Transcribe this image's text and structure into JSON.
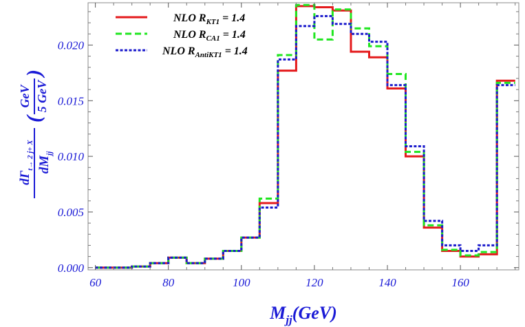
{
  "chart_data": {
    "type": "line",
    "step": true,
    "xlabel": "M",
    "xlabel_sub": "jj",
    "xlabel_unit": "(GeV)",
    "ylabel": {
      "numerator": "dΓ",
      "numerator_sub": "t→ 2 j+ X",
      "denominator": "dM",
      "denominator_sub": "jj",
      "unit_numerator": "GeV",
      "unit_denominator": "5 GeV"
    },
    "xlim": [
      58,
      176
    ],
    "ylim": [
      -0.0002,
      0.0238
    ],
    "xticks": [
      60,
      80,
      100,
      120,
      140,
      160
    ],
    "xtick_labels": [
      "60",
      "80",
      "100",
      "120",
      "140",
      "160"
    ],
    "yticks": [
      0.0,
      0.005,
      0.01,
      0.015,
      0.02
    ],
    "ytick_labels": [
      "0.000",
      "0.005",
      "0.010",
      "0.015",
      "0.020"
    ],
    "bin_edges": [
      60,
      65,
      70,
      75,
      80,
      85,
      90,
      95,
      100,
      105,
      110,
      115,
      120,
      125,
      130,
      135,
      140,
      145,
      150,
      155,
      160,
      165,
      170,
      175
    ],
    "series": [
      {
        "name": "NLO R",
        "name_sub": "KT1",
        "name_suffix": " = 1.4",
        "color": "#e41a1c",
        "dash": "solid",
        "values": [
          0.0,
          0.0,
          0.0001,
          0.0004,
          0.0009,
          0.0004,
          0.0008,
          0.0015,
          0.0027,
          0.0058,
          0.0177,
          0.0235,
          0.0234,
          0.0231,
          0.0194,
          0.0189,
          0.0161,
          0.01,
          0.0036,
          0.0015,
          0.001,
          0.0012,
          0.0168
        ]
      },
      {
        "name": "NLO R",
        "name_sub": "CA1",
        "name_suffix": " = 1.4",
        "color": "#1fe61f",
        "dash": "dashed",
        "values": [
          0.0,
          0.0,
          0.0001,
          0.0004,
          0.0009,
          0.0004,
          0.0008,
          0.0015,
          0.0027,
          0.0062,
          0.0191,
          0.0236,
          0.0205,
          0.0232,
          0.0215,
          0.0199,
          0.0174,
          0.0104,
          0.0038,
          0.0016,
          0.0011,
          0.0014,
          0.0166
        ]
      },
      {
        "name": "NLO R",
        "name_sub": "AntiKT1",
        "name_suffix": " = 1.4",
        "color": "#1a1acc",
        "dash": "dotted",
        "values": [
          0.0,
          0.0,
          0.0001,
          0.0004,
          0.0009,
          0.0004,
          0.0008,
          0.0015,
          0.0027,
          0.0054,
          0.0187,
          0.0217,
          0.0226,
          0.0219,
          0.021,
          0.0203,
          0.0164,
          0.0109,
          0.0042,
          0.002,
          0.0015,
          0.002,
          0.0164
        ]
      }
    ],
    "legend_position": "top-left",
    "grid": false
  }
}
